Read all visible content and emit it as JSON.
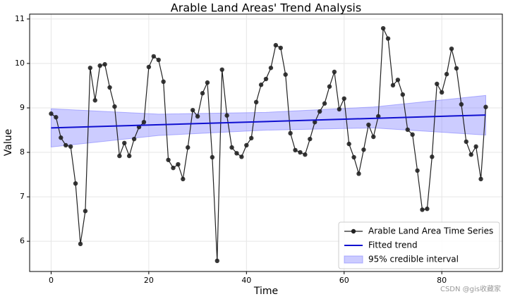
{
  "chart_data": {
    "type": "line",
    "title": "Arable Land Areas' Trend Analysis",
    "x_label": "Time",
    "y_label": "Value",
    "x": [
      0,
      1,
      2,
      3,
      4,
      5,
      6,
      7,
      8,
      9,
      10,
      11,
      12,
      13,
      14,
      15,
      16,
      17,
      18,
      19,
      20,
      21,
      22,
      23,
      24,
      25,
      26,
      27,
      28,
      29,
      30,
      31,
      32,
      33,
      34,
      35,
      36,
      37,
      38,
      39,
      40,
      41,
      42,
      43,
      44,
      45,
      46,
      47,
      48,
      49,
      50,
      51,
      52,
      53,
      54,
      55,
      56,
      57,
      58,
      59,
      60,
      61,
      62,
      63,
      64,
      65,
      66,
      67,
      68,
      69,
      70,
      71,
      72,
      73,
      74,
      75,
      76,
      77,
      78,
      79,
      80,
      81,
      82,
      83,
      84,
      85,
      86,
      87,
      88,
      89
    ],
    "series": [
      {
        "name": "Arable Land Area Time Series",
        "color": "#222222",
        "values": [
          8.87,
          8.79,
          8.33,
          8.16,
          8.13,
          7.3,
          5.94,
          6.68,
          9.9,
          9.17,
          9.95,
          9.98,
          9.46,
          9.03,
          7.92,
          8.21,
          7.92,
          8.3,
          8.57,
          8.68,
          9.92,
          10.16,
          10.08,
          9.59,
          7.83,
          7.65,
          7.73,
          7.4,
          8.11,
          8.95,
          8.81,
          9.33,
          9.57,
          7.89,
          5.56,
          9.86,
          8.83,
          8.11,
          7.98,
          7.9,
          8.16,
          8.32,
          9.13,
          9.52,
          9.65,
          9.9,
          10.41,
          10.35,
          9.75,
          8.43,
          8.05,
          8.0,
          7.95,
          8.3,
          8.68,
          8.92,
          9.1,
          9.48,
          9.81,
          8.97,
          9.21,
          8.19,
          7.89,
          7.52,
          8.06,
          8.62,
          8.35,
          8.81,
          10.79,
          10.56,
          9.51,
          9.63,
          9.3,
          8.51,
          8.4,
          7.59,
          6.71,
          6.73,
          7.9,
          9.54,
          9.35,
          9.76,
          10.33,
          9.89,
          9.08,
          8.24,
          7.95,
          8.13,
          7.4,
          9.02
        ]
      },
      {
        "name": "Fitted trend",
        "color": "#1010d0",
        "x": [
          0,
          89
        ],
        "values": [
          8.55,
          8.84
        ]
      }
    ],
    "band": {
      "name": "95% credible interval",
      "color": "#8080ff",
      "x": [
        0,
        22,
        44,
        66,
        89
      ],
      "lower": [
        8.12,
        8.38,
        8.5,
        8.55,
        8.39
      ],
      "upper": [
        8.98,
        8.86,
        8.9,
        9.02,
        9.28
      ]
    },
    "xlim": [
      -4.4,
      92.4
    ],
    "ylim": [
      5.32,
      11.11
    ],
    "xticks": [
      0,
      20,
      40,
      60,
      80
    ],
    "yticks": [
      6,
      7,
      8,
      9,
      10,
      11
    ],
    "grid": true,
    "legend": "lower right",
    "watermark": "CSDN @gis收藏家"
  }
}
